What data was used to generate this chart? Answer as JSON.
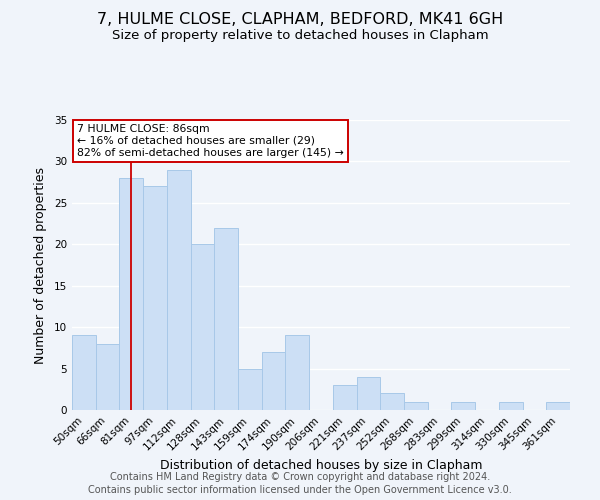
{
  "title": "7, HULME CLOSE, CLAPHAM, BEDFORD, MK41 6GH",
  "subtitle": "Size of property relative to detached houses in Clapham",
  "xlabel": "Distribution of detached houses by size in Clapham",
  "ylabel": "Number of detached properties",
  "bar_color": "#ccdff5",
  "bar_edge_color": "#a8c8e8",
  "categories": [
    "50sqm",
    "66sqm",
    "81sqm",
    "97sqm",
    "112sqm",
    "128sqm",
    "143sqm",
    "159sqm",
    "174sqm",
    "190sqm",
    "206sqm",
    "221sqm",
    "237sqm",
    "252sqm",
    "268sqm",
    "283sqm",
    "299sqm",
    "314sqm",
    "330sqm",
    "345sqm",
    "361sqm"
  ],
  "values": [
    9,
    8,
    28,
    27,
    29,
    20,
    22,
    5,
    7,
    9,
    0,
    3,
    4,
    2,
    1,
    0,
    1,
    0,
    1,
    0,
    1
  ],
  "ylim": [
    0,
    35
  ],
  "yticks": [
    0,
    5,
    10,
    15,
    20,
    25,
    30,
    35
  ],
  "redline_index": 2,
  "annotation_text": "7 HULME CLOSE: 86sqm\n← 16% of detached houses are smaller (29)\n82% of semi-detached houses are larger (145) →",
  "annotation_box_color": "#ffffff",
  "annotation_box_edge_color": "#cc0000",
  "footer_line1": "Contains HM Land Registry data © Crown copyright and database right 2024.",
  "footer_line2": "Contains public sector information licensed under the Open Government Licence v3.0.",
  "background_color": "#f0f4fa",
  "plot_background_color": "#f0f4fa",
  "grid_color": "#ffffff",
  "title_fontsize": 11.5,
  "subtitle_fontsize": 9.5,
  "axis_label_fontsize": 9,
  "tick_fontsize": 7.5,
  "footer_fontsize": 7.0,
  "annot_fontsize": 7.8
}
